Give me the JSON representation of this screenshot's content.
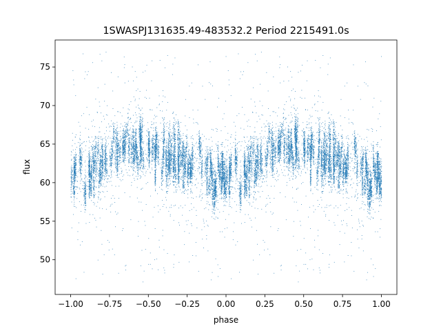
{
  "chart_data": {
    "type": "scatter",
    "title": "1SWASPJ131635.49-483532.2 Period 2215491.0s",
    "xlabel": "phase",
    "ylabel": "flux",
    "xlim": [
      -1.1,
      1.1
    ],
    "ylim": [
      45.5,
      78.5
    ],
    "xticks": [
      -1.0,
      -0.75,
      -0.5,
      -0.25,
      0.0,
      0.25,
      0.5,
      0.75,
      1.0
    ],
    "xtick_labels": [
      "−1.00",
      "−0.75",
      "−0.50",
      "−0.25",
      "0.00",
      "0.25",
      "0.50",
      "0.75",
      "1.00"
    ],
    "yticks": [
      50,
      55,
      60,
      65,
      70,
      75
    ],
    "ytick_labels": [
      "50",
      "55",
      "60",
      "65",
      "70",
      "75"
    ],
    "grid": false,
    "legend": "none",
    "point_color": "#1f77b4",
    "series": [
      {
        "x_range": [
          -1.0,
          1.0
        ],
        "mean_profile": {
          "phase": [
            0.0,
            0.1,
            0.2,
            0.3,
            0.4,
            0.5,
            0.6,
            0.7,
            0.8,
            0.9,
            1.0
          ],
          "flux": [
            60.5,
            61.5,
            63.0,
            64.0,
            64.5,
            65.0,
            63.5,
            62.5,
            62.0,
            61.0,
            60.5
          ]
        },
        "typical_scatter": 2.0,
        "outlier_range": [
          47,
          77
        ]
      }
    ]
  }
}
